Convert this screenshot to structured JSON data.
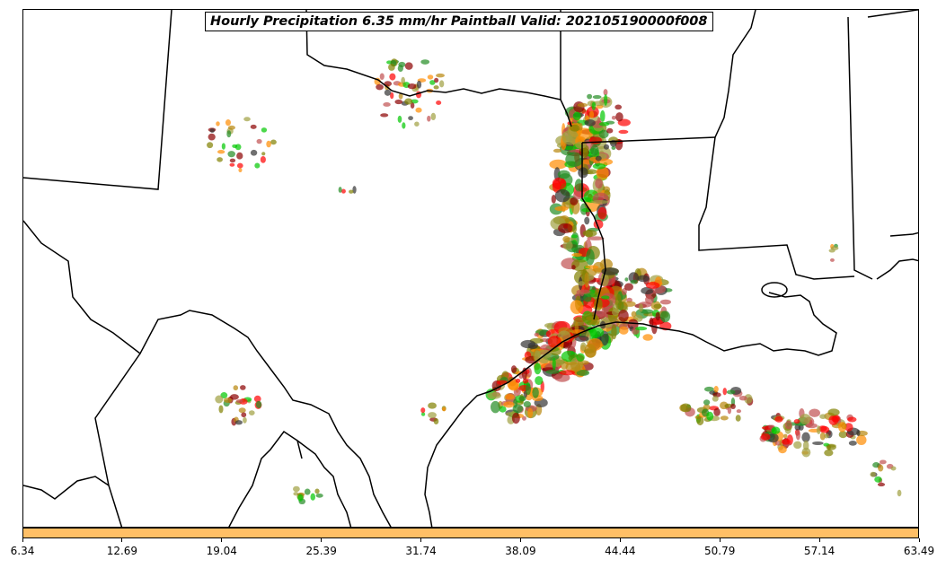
{
  "title": "Hourly Precipitation 6.35 mm/hr Paintball Valid: 202105190000f008",
  "colorbar": {
    "color": "#ffbf66",
    "ticks": [
      "6.34",
      "12.69",
      "19.04",
      "25.39",
      "31.74",
      "38.09",
      "44.44",
      "50.79",
      "57.14",
      "63.49"
    ]
  },
  "member_colors": [
    "#ff0000",
    "#ff8c00",
    "#00c800",
    "#8b0000",
    "#808000",
    "#228b22",
    "#333333",
    "#b8860b",
    "#c05050",
    "#a0a040"
  ]
}
